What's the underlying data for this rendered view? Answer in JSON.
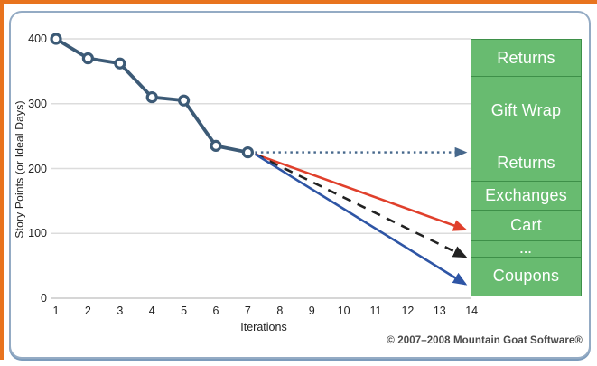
{
  "chart_data": {
    "type": "line",
    "title": "",
    "xlabel": "Iterations",
    "ylabel": "Story Points (or Ideal Days)",
    "xlim": [
      1,
      14
    ],
    "ylim": [
      0,
      400
    ],
    "x_ticks": [
      1,
      2,
      3,
      4,
      5,
      6,
      7,
      8,
      9,
      10,
      11,
      12,
      13,
      14
    ],
    "y_ticks": [
      400,
      300,
      200,
      100,
      0
    ],
    "grid": "horizontal",
    "series": [
      {
        "name": "actual-burndown",
        "color": "#3c5a76",
        "x": [
          1,
          2,
          3,
          4,
          5,
          6,
          7
        ],
        "values": [
          400,
          370,
          362,
          310,
          305,
          235,
          225
        ]
      }
    ],
    "projections": [
      {
        "name": "flat-scope-arrow",
        "style": "dotted",
        "color": "#47688c",
        "from": {
          "x": 7,
          "value": 225
        },
        "to": {
          "x": 13.8,
          "value": 225
        }
      },
      {
        "name": "velocity-high-arrow",
        "style": "solid",
        "color": "#e0402c",
        "from": {
          "x": 7,
          "value": 225
        },
        "to": {
          "x": 13.8,
          "value": 106
        }
      },
      {
        "name": "velocity-expected-arrow",
        "style": "dashed",
        "color": "#222222",
        "from": {
          "x": 7,
          "value": 225
        },
        "to": {
          "x": 13.8,
          "value": 64
        }
      },
      {
        "name": "velocity-low-arrow",
        "style": "solid",
        "color": "#2e55a5",
        "from": {
          "x": 7,
          "value": 225
        },
        "to": {
          "x": 13.8,
          "value": 22
        }
      }
    ],
    "stack": {
      "top_value": 400,
      "items": [
        {
          "label": "Returns",
          "size": 57
        },
        {
          "label": "Gift Wrap",
          "size": 106
        },
        {
          "label": "Returns",
          "size": 56
        },
        {
          "label": "Exchanges",
          "size": 44
        },
        {
          "label": "Cart",
          "size": 48
        },
        {
          "label": "...",
          "size": 25
        },
        {
          "label": "Coupons",
          "size": 59
        }
      ]
    }
  },
  "footer": {
    "copyright": "© 2007–2008 Mountain Goat Software®"
  },
  "colors": {
    "frame_orange": "#e8731e",
    "panel_border": "#94abc4",
    "grid": "#dcdcdc",
    "axis_line": "#c8c8c8",
    "line": "#3c5a76",
    "green_fill": "#68bb70",
    "green_border": "#3e9049"
  }
}
